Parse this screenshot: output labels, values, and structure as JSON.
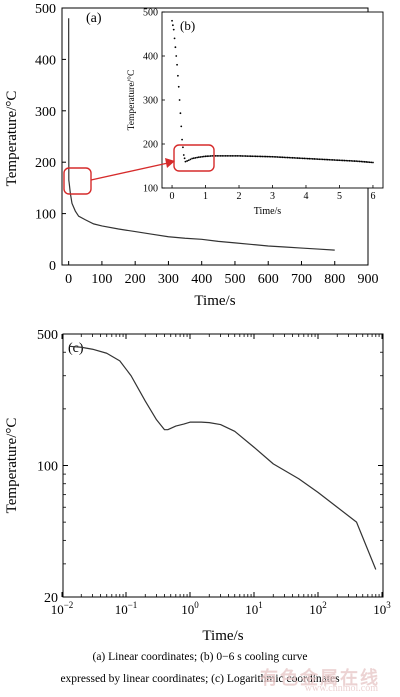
{
  "chart_data": [
    {
      "panel": "(a)",
      "type": "line",
      "xlabel": "Time/s",
      "ylabel": "Temperature/°C",
      "xlim": [
        -20,
        900
      ],
      "ylim": [
        0,
        500
      ],
      "xticks": [
        0,
        100,
        200,
        300,
        400,
        500,
        600,
        700,
        800,
        900
      ],
      "yticks": [
        0,
        100,
        200,
        300,
        400,
        500
      ],
      "series": [
        {
          "values_x": [
            0,
            0.5,
            1.5,
            5,
            10,
            20,
            30,
            50,
            75,
            100,
            150,
            200,
            250,
            300,
            350,
            400,
            450,
            500,
            550,
            600,
            650,
            700,
            750,
            800
          ],
          "values_y": [
            480,
            165,
            160,
            140,
            120,
            105,
            95,
            88,
            80,
            76,
            70,
            65,
            60,
            55,
            52,
            50,
            46,
            43,
            40,
            37,
            35,
            33,
            31,
            29
          ]
        }
      ]
    },
    {
      "panel": "(b)",
      "type": "scatter",
      "xlabel": "Time/s",
      "ylabel": "Temperature/°C",
      "xlim": [
        -0.3,
        6.3
      ],
      "ylim": [
        100,
        500
      ],
      "xticks": [
        0,
        1,
        2,
        3,
        4,
        5,
        6
      ],
      "yticks": [
        100,
        200,
        300,
        400,
        500
      ],
      "series": [
        {
          "values_x": [
            0,
            0.05,
            0.1,
            0.15,
            0.2,
            0.25,
            0.3,
            0.35,
            0.4,
            0.5,
            0.6,
            0.8,
            1.0,
            1.2,
            1.5,
            2,
            2.5,
            3,
            3.5,
            4,
            4.5,
            5,
            5.5,
            6
          ],
          "values_y": [
            480,
            460,
            420,
            380,
            330,
            270,
            210,
            175,
            160,
            163,
            167,
            170,
            172,
            173,
            173,
            173,
            172,
            171,
            169,
            167,
            165,
            163,
            161,
            158
          ]
        }
      ]
    },
    {
      "panel": "(c)",
      "type": "line",
      "xscale": "log",
      "yscale": "log",
      "xlabel": "Time/s",
      "ylabel": "Temperature/°C",
      "xlim": [
        0.01,
        1000
      ],
      "ylim": [
        20,
        500
      ],
      "xticks": [
        "10^-2",
        "10^-1",
        "10^0",
        "10^1",
        "10^2",
        "10^3"
      ],
      "yticks": [
        20,
        100,
        500
      ],
      "series": [
        {
          "values_x": [
            0.013,
            0.02,
            0.03,
            0.05,
            0.08,
            0.12,
            0.2,
            0.3,
            0.4,
            0.45,
            0.6,
            0.8,
            1,
            1.5,
            2,
            3,
            5,
            10,
            20,
            50,
            100,
            200,
            400,
            800
          ],
          "values_y": [
            430,
            425,
            415,
            395,
            360,
            300,
            220,
            175,
            155,
            155,
            162,
            166,
            170,
            170,
            169,
            165,
            152,
            125,
            102,
            85,
            72,
            60,
            50,
            28
          ]
        }
      ]
    }
  ],
  "caption": {
    "line1": "(a)  Linear  coordinates;  (b)  0−6  s  cooling  curve",
    "line2": "expressed by linear coordinates; (c) Logarithmic coordinates"
  },
  "watermark": {
    "text": "有色金属在线",
    "url": "www.cnnmol.com"
  },
  "colors": {
    "line": "#333333",
    "arrow": "#d62b2b"
  }
}
